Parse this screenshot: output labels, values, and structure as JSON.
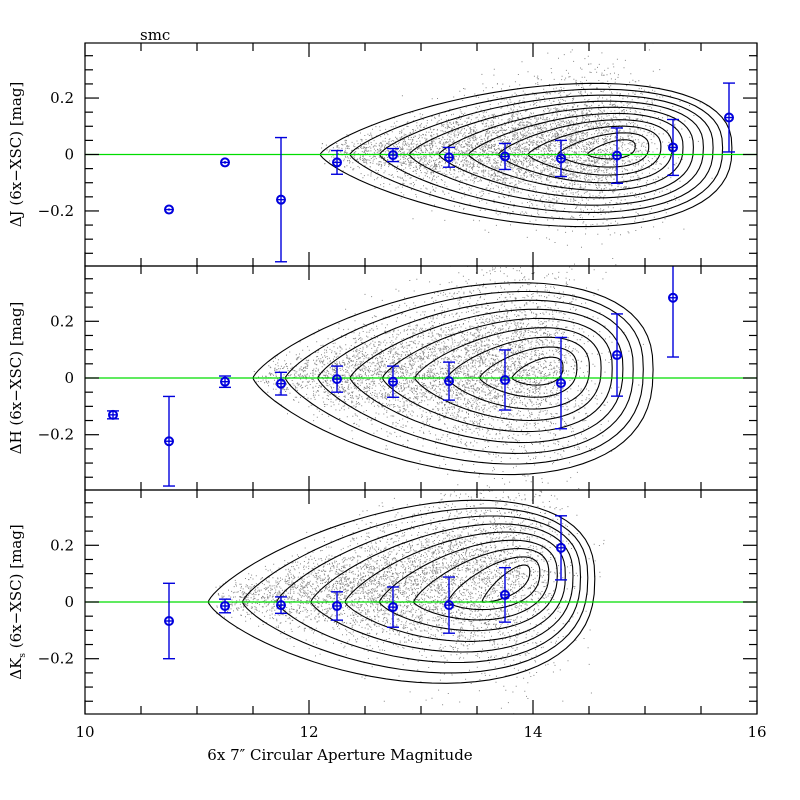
{
  "chart_data": {
    "type": "scatter",
    "title": "smc",
    "xlabel": "6x 7″ Circular Aperture Magnitude",
    "xlim": [
      10,
      16
    ],
    "x_ticks": [
      10,
      12,
      14,
      16
    ],
    "x_tick_labels": [
      "10",
      "12",
      "14",
      "16"
    ],
    "x_minor_step": 0.5,
    "reference_line": {
      "y": 0,
      "color": "#00dd00"
    },
    "colors": {
      "points": "#0000dd",
      "contours": "#000000",
      "scatter": "#888888",
      "frame": "#000000"
    },
    "panels": [
      {
        "id": "J",
        "ylabel_prefix": "ΔJ",
        "ylabel_sub": "",
        "ylabel_suffix": " (6x−XSC) [mag]",
        "ylim": [
          -0.395,
          0.395
        ],
        "y_ticks": [
          -0.2,
          0,
          0.2
        ],
        "y_tick_labels": [
          "−0.2",
          "0",
          "0.2"
        ],
        "y_minor_step": 0.05,
        "points": [
          {
            "x": 10.75,
            "y": -0.195,
            "err": 0.004
          },
          {
            "x": 11.25,
            "y": -0.028,
            "err": 0.005
          },
          {
            "x": 11.75,
            "y": -0.16,
            "err": 0.22
          },
          {
            "x": 12.25,
            "y": -0.028,
            "err": 0.042
          },
          {
            "x": 12.75,
            "y": -0.002,
            "err": 0.023
          },
          {
            "x": 13.25,
            "y": -0.01,
            "err": 0.035
          },
          {
            "x": 13.75,
            "y": -0.007,
            "err": 0.046
          },
          {
            "x": 14.25,
            "y": -0.014,
            "err": 0.064
          },
          {
            "x": 14.75,
            "y": -0.004,
            "err": 0.098
          },
          {
            "x": 15.25,
            "y": 0.025,
            "err": 0.099
          },
          {
            "x": 15.75,
            "y": 0.131,
            "err": 0.122
          }
        ],
        "density": {
          "peak_x": 14.75,
          "peak_y": 0.03,
          "tail_x": 12.1,
          "tail_y": 0.0,
          "width": 0.3,
          "right_x": 15.7,
          "levels": 10
        }
      },
      {
        "id": "H",
        "ylabel_prefix": "ΔH",
        "ylabel_sub": "",
        "ylabel_suffix": " (6x−XSC) [mag]",
        "ylim": [
          -0.395,
          0.395
        ],
        "y_ticks": [
          -0.2,
          0,
          0.2
        ],
        "y_tick_labels": [
          "−0.2",
          "0",
          "0.2"
        ],
        "y_minor_step": 0.05,
        "points": [
          {
            "x": 10.25,
            "y": -0.13,
            "err": 0.014
          },
          {
            "x": 10.75,
            "y": -0.223,
            "err": 0.158
          },
          {
            "x": 11.25,
            "y": -0.013,
            "err": 0.02
          },
          {
            "x": 11.75,
            "y": -0.02,
            "err": 0.04
          },
          {
            "x": 12.25,
            "y": -0.004,
            "err": 0.046
          },
          {
            "x": 12.75,
            "y": -0.013,
            "err": 0.055
          },
          {
            "x": 13.25,
            "y": -0.011,
            "err": 0.067
          },
          {
            "x": 13.75,
            "y": -0.007,
            "err": 0.106
          },
          {
            "x": 14.25,
            "y": -0.018,
            "err": 0.161
          },
          {
            "x": 14.75,
            "y": 0.081,
            "err": 0.145
          },
          {
            "x": 15.25,
            "y": 0.283,
            "err": 0.209
          }
        ],
        "density": {
          "peak_x": 14.1,
          "peak_y": 0.04,
          "tail_x": 11.5,
          "tail_y": 0.0,
          "width": 0.4,
          "right_x": 15.0,
          "levels": 9
        }
      },
      {
        "id": "Ks",
        "ylabel_prefix": "ΔK",
        "ylabel_sub": "s",
        "ylabel_suffix": " (6x−XSC) [mag]",
        "ylim": [
          -0.395,
          0.395
        ],
        "y_ticks": [
          -0.2,
          0,
          0.2
        ],
        "y_tick_labels": [
          "−0.2",
          "0",
          "0.2"
        ],
        "y_minor_step": 0.05,
        "points": [
          {
            "x": 10.75,
            "y": -0.067,
            "err": 0.133
          },
          {
            "x": 11.25,
            "y": -0.014,
            "err": 0.024
          },
          {
            "x": 11.75,
            "y": -0.011,
            "err": 0.029
          },
          {
            "x": 12.25,
            "y": -0.014,
            "err": 0.05
          },
          {
            "x": 12.75,
            "y": -0.018,
            "err": 0.071
          },
          {
            "x": 13.25,
            "y": -0.011,
            "err": 0.099
          },
          {
            "x": 13.75,
            "y": 0.025,
            "err": 0.096
          },
          {
            "x": 14.25,
            "y": 0.191,
            "err": 0.113
          }
        ],
        "density": {
          "peak_x": 13.85,
          "peak_y": 0.11,
          "tail_x": 11.1,
          "tail_y": 0.0,
          "width": 0.38,
          "right_x": 14.5,
          "levels": 9
        }
      }
    ]
  }
}
